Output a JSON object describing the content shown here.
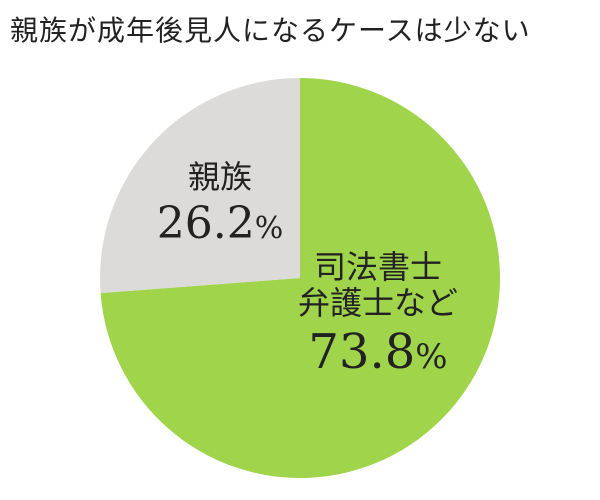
{
  "chart_data": {
    "type": "pie",
    "title": "親族が成年後見人になるケースは少ない",
    "start_angle_deg": 0,
    "direction": "clockwise",
    "slices": [
      {
        "label_lines": [
          "司法書士",
          "弁護士など"
        ],
        "value": 73.8,
        "value_text": "73.8",
        "unit": "%",
        "color": "#a0d44b"
      },
      {
        "label_lines": [
          "親族"
        ],
        "value": 26.2,
        "value_text": "26.2",
        "unit": "%",
        "color": "#dcdbd9"
      }
    ]
  }
}
